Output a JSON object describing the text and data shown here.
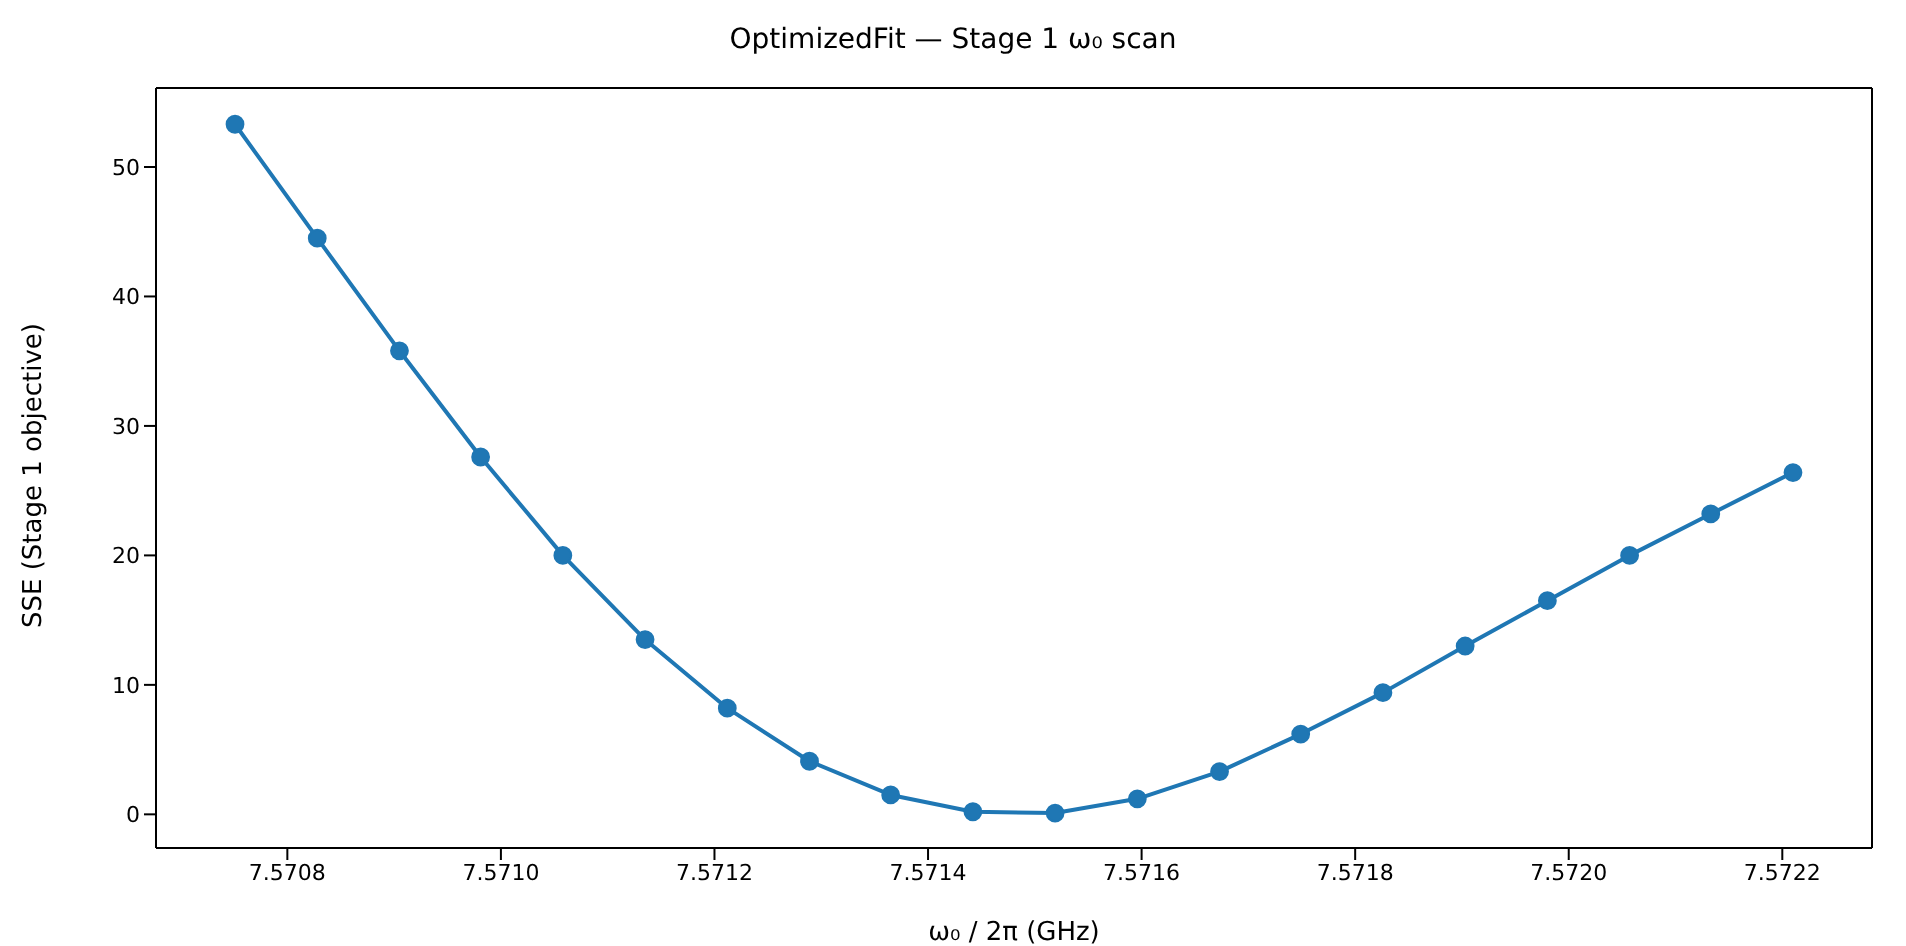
{
  "chart_data": {
    "type": "line",
    "title": "OptimizedFit — Stage 1 ω₀ scan",
    "xlabel": "ω₀ / 2π  (GHz)",
    "ylabel": "SSE  (Stage 1 objective)",
    "x": [
      7.570751,
      7.570828,
      7.570905,
      7.570981,
      7.571058,
      7.571135,
      7.571212,
      7.571289,
      7.571365,
      7.571442,
      7.571519,
      7.571596,
      7.571673,
      7.571749,
      7.571826,
      7.571903,
      7.57198,
      7.572057,
      7.572133,
      7.57221
    ],
    "series": [
      {
        "color": "#1f77b4",
        "values": [
          53.3,
          44.5,
          35.8,
          27.6,
          20,
          13.5,
          8.2,
          4.1,
          1.5,
          0.2,
          0.1,
          1.2,
          3.3,
          6.2,
          9.4,
          13,
          16.5,
          20,
          23.2,
          26.4
        ]
      }
    ],
    "xlim": [
      7.570677,
      7.572284
    ],
    "xticks": [
      7.5708,
      {
        "value": 7.571,
        "label": "7.5710"
      },
      7.5712,
      7.5714,
      7.5716,
      7.5718,
      {
        "value": 7.572,
        "label": "7.5720"
      },
      7.5722
    ],
    "ylim": [
      -2.6,
      56.1
    ],
    "yticks": [
      0,
      10,
      20,
      30,
      40,
      50
    ],
    "marker": "circle",
    "line_style": "solid",
    "grid": false,
    "legend": false
  }
}
